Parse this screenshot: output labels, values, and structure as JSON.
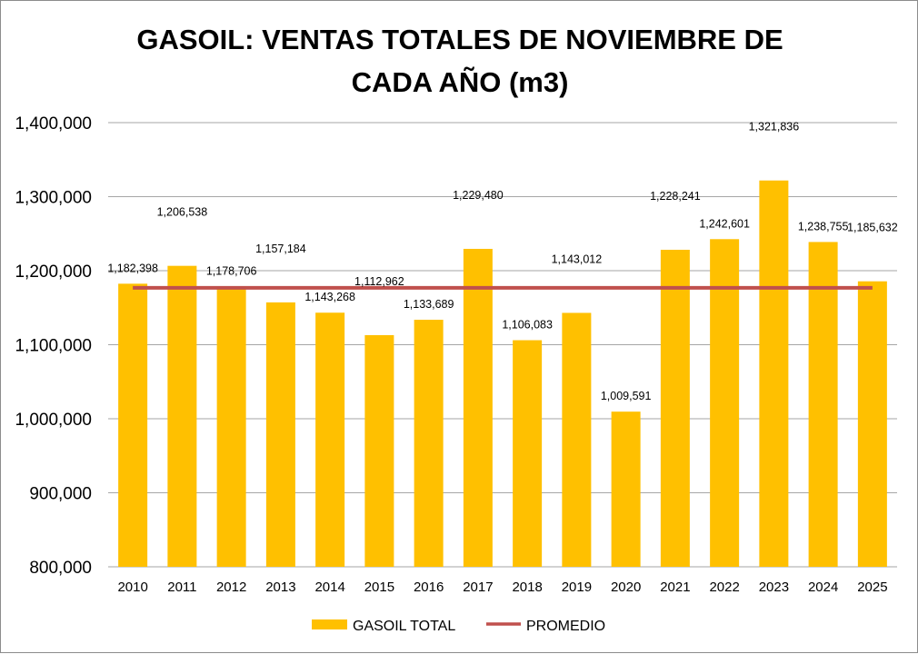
{
  "chart_data": {
    "type": "bar",
    "title_lines": [
      "GASOIL: VENTAS TOTALES DE NOVIEMBRE DE",
      "CADA AÑO (m3)"
    ],
    "categories": [
      "2010",
      "2011",
      "2012",
      "2013",
      "2014",
      "2015",
      "2016",
      "2017",
      "2018",
      "2019",
      "2020",
      "2021",
      "2022",
      "2023",
      "2024",
      "2025"
    ],
    "series": [
      {
        "name": "GASOIL TOTAL",
        "type": "bar",
        "color": "#FFC000",
        "values": [
          1182398,
          1206538,
          1178706,
          1157184,
          1143268,
          1112962,
          1133689,
          1229480,
          1106083,
          1143012,
          1009591,
          1228241,
          1242601,
          1321836,
          1238755,
          1185632
        ],
        "labels": [
          "1,182,398",
          "1,206,538",
          "1,178,706",
          "1,157,184",
          "1,143,268",
          "1,112,962",
          "1,133,689",
          "1,229,480",
          "1,106,083",
          "1,143,012",
          "1,009,591",
          "1,228,241",
          "1,242,601",
          "1,321,836",
          "1,238,755",
          "1,185,632"
        ]
      },
      {
        "name": "PROMEDIO",
        "type": "line",
        "color": "#C0504D",
        "value": 1176900
      }
    ],
    "y_ticks": [
      "800,000",
      "900,000",
      "1,000,000",
      "1,100,000",
      "1,200,000",
      "1,300,000",
      "1,400,000"
    ],
    "ylim": [
      800000,
      1400000
    ],
    "grid": true,
    "gridline_color": "#A6A6A6",
    "legend_position": "bottom"
  }
}
